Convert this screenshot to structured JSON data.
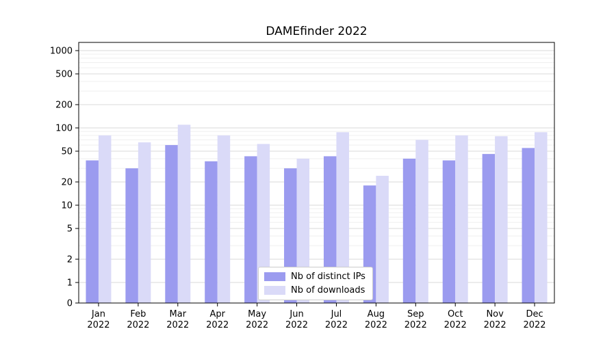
{
  "title": "DAMEfinder 2022",
  "colors": {
    "ips_bar": "#9b9bef",
    "downloads_bar": "#dadaf8",
    "grid_major": "#d9d9d9",
    "grid_minor": "#efefef",
    "axis": "#000000",
    "background": "#ffffff"
  },
  "chart_data": {
    "type": "bar",
    "title": "DAMEfinder 2022",
    "yscale": "symlog",
    "ylabel": "",
    "xlabel": "",
    "yticks": [
      0,
      1,
      2,
      5,
      10,
      20,
      50,
      100,
      200,
      500,
      1000
    ],
    "ylim": [
      0,
      1500
    ],
    "grid": true,
    "legend_position": "lower center",
    "categories": [
      "Jan",
      "Feb",
      "Mar",
      "Apr",
      "May",
      "Jun",
      "Jul",
      "Aug",
      "Sep",
      "Oct",
      "Nov",
      "Dec"
    ],
    "year": "2022",
    "series": [
      {
        "name": "Nb of distinct IPs",
        "key": "ips",
        "values": [
          38,
          30,
          60,
          37,
          43,
          30,
          43,
          18,
          40,
          38,
          46,
          55
        ]
      },
      {
        "name": "Nb of downloads",
        "key": "downloads",
        "values": [
          80,
          65,
          110,
          80,
          62,
          40,
          88,
          24,
          70,
          80,
          78,
          88
        ]
      }
    ]
  }
}
